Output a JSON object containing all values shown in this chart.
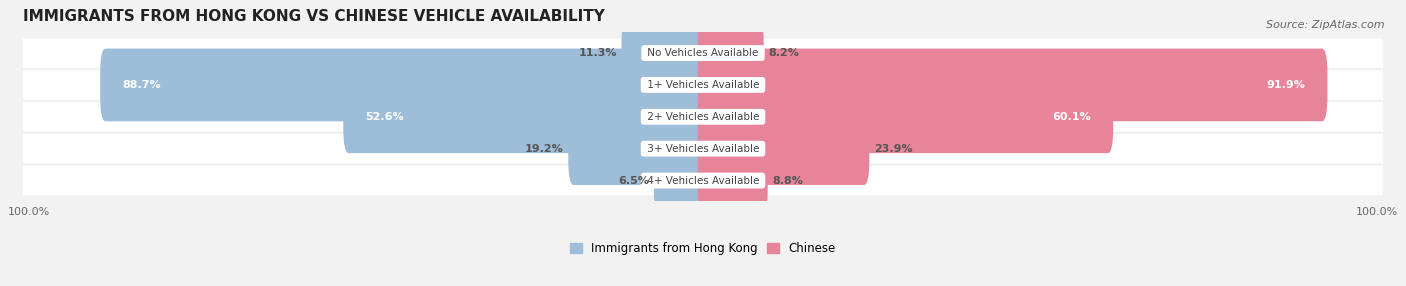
{
  "title": "IMMIGRANTS FROM HONG KONG VS CHINESE VEHICLE AVAILABILITY",
  "source": "Source: ZipAtlas.com",
  "categories": [
    "No Vehicles Available",
    "1+ Vehicles Available",
    "2+ Vehicles Available",
    "3+ Vehicles Available",
    "4+ Vehicles Available"
  ],
  "hk_values": [
    11.3,
    88.7,
    52.6,
    19.2,
    6.5
  ],
  "cn_values": [
    8.2,
    91.9,
    60.1,
    23.9,
    8.8
  ],
  "hk_color": "#9dbdd8",
  "cn_color": "#e8849a",
  "hk_label": "Immigrants from Hong Kong",
  "cn_label": "Chinese",
  "max_val": 100.0,
  "bg_color": "#f2f2f2",
  "row_bg_color": "#ffffff",
  "title_fontsize": 11,
  "source_fontsize": 8,
  "label_fontsize": 8,
  "legend_fontsize": 8.5,
  "axis_label_fontsize": 8
}
